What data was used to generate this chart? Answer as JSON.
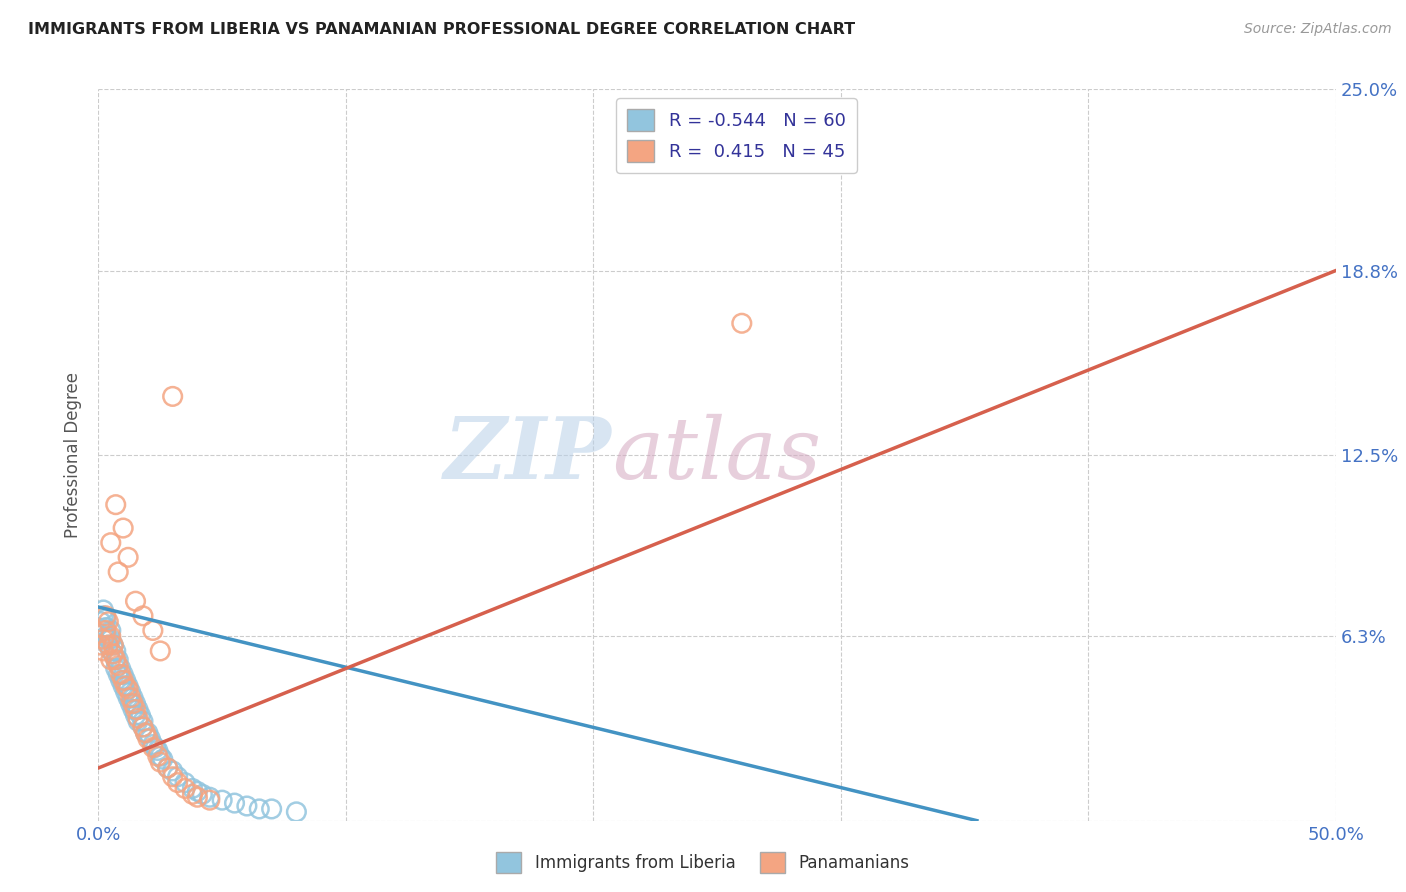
{
  "title": "IMMIGRANTS FROM LIBERIA VS PANAMANIAN PROFESSIONAL DEGREE CORRELATION CHART",
  "source": "Source: ZipAtlas.com",
  "ylabel": "Professional Degree",
  "xlim": [
    0.0,
    0.5
  ],
  "ylim": [
    0.0,
    0.25
  ],
  "color_blue": "#92c5de",
  "color_pink": "#f4a582",
  "line_blue": "#4393c3",
  "line_pink": "#d6604d",
  "watermark_zip": "ZIP",
  "watermark_atlas": "atlas",
  "background_color": "#ffffff",
  "grid_color": "#cccccc",
  "blue_r": "-0.544",
  "blue_n": "60",
  "pink_r": "0.415",
  "pink_n": "45",
  "blue_line_x": [
    0.0,
    0.355
  ],
  "blue_line_y": [
    0.073,
    0.0
  ],
  "pink_line_x": [
    0.0,
    0.5
  ],
  "pink_line_y": [
    0.018,
    0.188
  ],
  "blue_scatter_x": [
    0.001,
    0.002,
    0.002,
    0.002,
    0.003,
    0.003,
    0.003,
    0.004,
    0.004,
    0.005,
    0.005,
    0.005,
    0.006,
    0.006,
    0.007,
    0.007,
    0.007,
    0.008,
    0.008,
    0.009,
    0.009,
    0.01,
    0.01,
    0.011,
    0.011,
    0.012,
    0.012,
    0.013,
    0.013,
    0.014,
    0.014,
    0.015,
    0.015,
    0.016,
    0.016,
    0.017,
    0.018,
    0.018,
    0.019,
    0.02,
    0.021,
    0.022,
    0.023,
    0.024,
    0.025,
    0.026,
    0.028,
    0.03,
    0.032,
    0.035,
    0.038,
    0.04,
    0.042,
    0.045,
    0.05,
    0.055,
    0.06,
    0.065,
    0.07,
    0.08
  ],
  "blue_scatter_y": [
    0.068,
    0.065,
    0.072,
    0.07,
    0.066,
    0.063,
    0.069,
    0.062,
    0.06,
    0.065,
    0.058,
    0.062,
    0.06,
    0.057,
    0.055,
    0.058,
    0.052,
    0.055,
    0.05,
    0.052,
    0.048,
    0.05,
    0.046,
    0.048,
    0.044,
    0.046,
    0.042,
    0.044,
    0.04,
    0.042,
    0.038,
    0.04,
    0.036,
    0.038,
    0.034,
    0.036,
    0.034,
    0.032,
    0.03,
    0.03,
    0.028,
    0.026,
    0.025,
    0.024,
    0.022,
    0.021,
    0.018,
    0.017,
    0.015,
    0.013,
    0.011,
    0.01,
    0.009,
    0.008,
    0.007,
    0.006,
    0.005,
    0.004,
    0.004,
    0.003
  ],
  "pink_scatter_x": [
    0.001,
    0.002,
    0.002,
    0.003,
    0.003,
    0.004,
    0.004,
    0.005,
    0.005,
    0.006,
    0.006,
    0.007,
    0.008,
    0.009,
    0.01,
    0.011,
    0.012,
    0.013,
    0.014,
    0.015,
    0.016,
    0.018,
    0.019,
    0.02,
    0.022,
    0.024,
    0.025,
    0.028,
    0.03,
    0.032,
    0.035,
    0.038,
    0.04,
    0.045,
    0.005,
    0.007,
    0.008,
    0.01,
    0.012,
    0.015,
    0.018,
    0.022,
    0.025,
    0.26,
    0.03
  ],
  "pink_scatter_y": [
    0.06,
    0.058,
    0.062,
    0.07,
    0.065,
    0.068,
    0.06,
    0.063,
    0.055,
    0.06,
    0.057,
    0.055,
    0.053,
    0.05,
    0.048,
    0.046,
    0.045,
    0.042,
    0.04,
    0.038,
    0.035,
    0.032,
    0.03,
    0.028,
    0.025,
    0.022,
    0.02,
    0.018,
    0.015,
    0.013,
    0.011,
    0.009,
    0.008,
    0.007,
    0.095,
    0.108,
    0.085,
    0.1,
    0.09,
    0.075,
    0.07,
    0.065,
    0.058,
    0.17,
    0.145
  ]
}
